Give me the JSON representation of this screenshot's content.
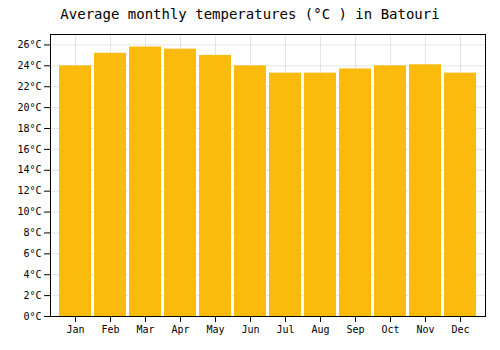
{
  "chart_data": {
    "type": "bar",
    "title": "Average monthly temperatures (°C ) in Batouri",
    "categories": [
      "Jan",
      "Feb",
      "Mar",
      "Apr",
      "May",
      "Jun",
      "Jul",
      "Aug",
      "Sep",
      "Oct",
      "Nov",
      "Dec"
    ],
    "values": [
      24.0,
      25.2,
      25.8,
      25.6,
      25.0,
      24.0,
      23.3,
      23.3,
      23.7,
      24.0,
      24.1,
      23.3
    ],
    "color": "#FBBA0E",
    "ylim": [
      0,
      27
    ],
    "yticks": [
      {
        "value": 0,
        "label": "0°C"
      },
      {
        "value": 2,
        "label": "2°C"
      },
      {
        "value": 4,
        "label": "4°C"
      },
      {
        "value": 6,
        "label": "6°C"
      },
      {
        "value": 8,
        "label": "8°C"
      },
      {
        "value": 10,
        "label": "10°C"
      },
      {
        "value": 12,
        "label": "12°C"
      },
      {
        "value": 14,
        "label": "14°C"
      },
      {
        "value": 16,
        "label": "16°C"
      },
      {
        "value": 18,
        "label": "18°C"
      },
      {
        "value": 20,
        "label": "20°C"
      },
      {
        "value": 22,
        "label": "22°C"
      },
      {
        "value": 24,
        "label": "24°C"
      },
      {
        "value": 26,
        "label": "26°C"
      }
    ],
    "grid": true
  }
}
